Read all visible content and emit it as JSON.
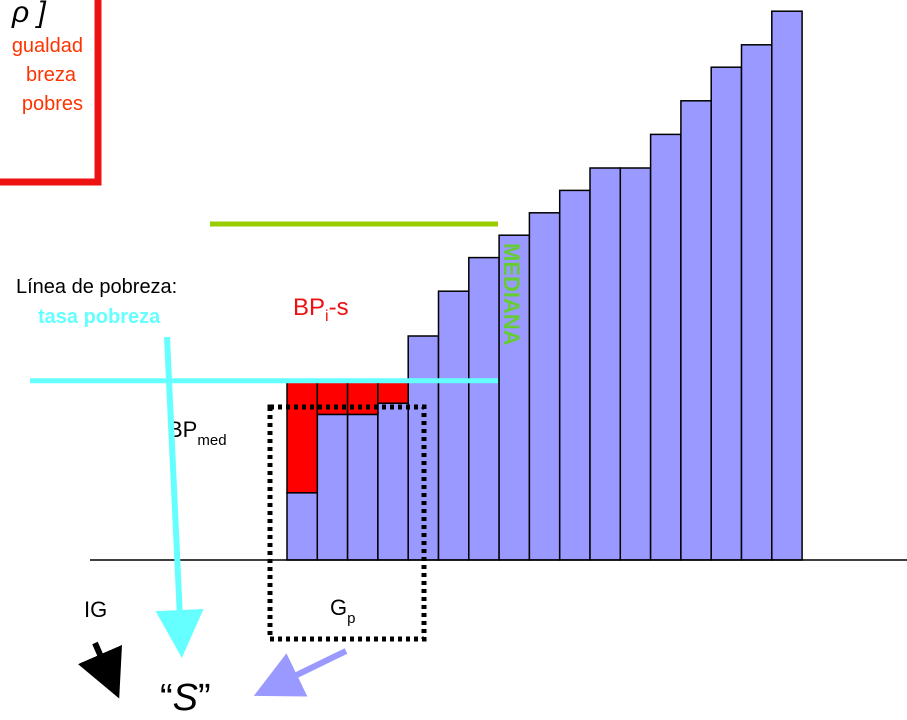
{
  "legend_box": {
    "formula_glyph": "ρ ]",
    "line1": "gualdad",
    "line2": "breza",
    "line3": "pobres"
  },
  "labels": {
    "poverty_line": "Línea de pobreza:",
    "poverty_rate": "tasa pobreza",
    "bp_i_s_main": "BP",
    "bp_i_s_sub": "i",
    "bp_i_s_tail": "-s",
    "mediana": "MEDIANA",
    "bp_med_main": "BP",
    "bp_med_sub": "med",
    "ig": "IG",
    "gp_main": "G",
    "gp_sub": "p",
    "s_open": "“",
    "s_letter": "S",
    "s_close": "”"
  },
  "colors": {
    "bar_fill": "#9999ff",
    "gap_fill": "#ff0000",
    "poverty_line": "#66ffff",
    "median_line": "#99cc00",
    "mediana_text": "#66cc33",
    "legend_border": "#ee1111",
    "legend_text": "#ff3300",
    "arrow_blue": "#9999ff",
    "arrow_cyan": "#66ffff",
    "arrow_black": "#000000"
  },
  "chart_data": {
    "type": "bar",
    "poverty_line_value": 16,
    "median_value": 30,
    "values": [
      6,
      13,
      13,
      14,
      20,
      24,
      27,
      29,
      31,
      33,
      35,
      35,
      38,
      41,
      44,
      46,
      49
    ]
  }
}
